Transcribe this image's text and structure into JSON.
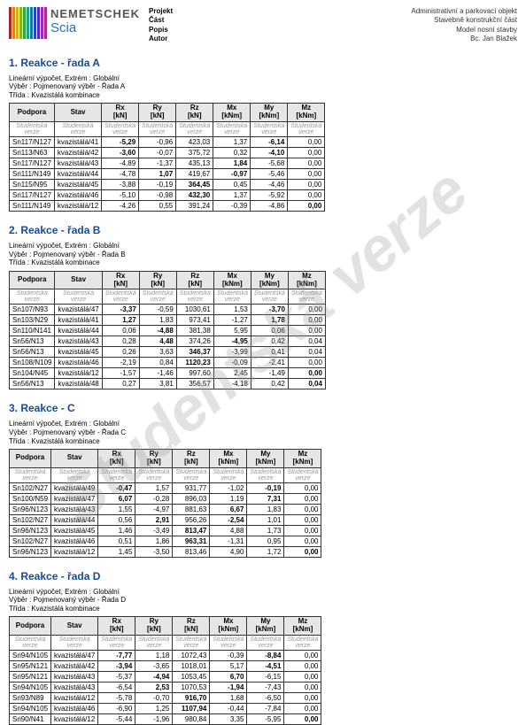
{
  "watermark_text": "Studentská verze",
  "logo": {
    "brand_top": "NEMETSCHEK",
    "brand_bottom": "Scia",
    "bar_colors": [
      "#a52828",
      "#d48817",
      "#c9b41a",
      "#8bb31a",
      "#3aa23a",
      "#1aa28b",
      "#1a73b3",
      "#2a4ab3",
      "#5a2ab3",
      "#a22ab3",
      "#b32a7a"
    ]
  },
  "meta_left": {
    "l1": "Projekt",
    "l2": "Část",
    "l3": "Popis",
    "l4": "Autor"
  },
  "meta_right": {
    "l1": "Administrativní a parkovací objekt",
    "l2": "Stavebně konstrukční část",
    "l3": "Model nosní stavby",
    "l4": "Bc. Jan Blažek"
  },
  "sections": [
    {
      "title": "1. Reakce - řada A",
      "sub1": "Lineární výpočet, Extrém : Globální",
      "sub2": "Výběr : Pojmenovaný výběr - Řada A",
      "sub3": "Třída : Kvazistálá kombinace",
      "headers": [
        "Podpora",
        "Stav",
        "Rx\n[kN]",
        "Ry\n[kN]",
        "Rz\n[kN]",
        "Mx\n[kNm]",
        "My\n[kNm]",
        "Mz\n[kNm]"
      ],
      "rows": [
        [
          "Sn117/N127",
          "kvazistálá/41",
          "b:-5,29",
          "-0,96",
          "423,03",
          "1,37",
          "b:-6,14",
          "0,00"
        ],
        [
          "Sn113/N63",
          "kvazistálá/42",
          "b:-3,60",
          "-0,07",
          "375,72",
          "0,32",
          "b:-4,10",
          "0,00"
        ],
        [
          "Sn117/N127",
          "kvazistálá/43",
          "-4,89",
          "-1,37",
          "435,13",
          "b:1,84",
          "-5,68",
          "0,00"
        ],
        [
          "Sn111/N149",
          "kvazistálá/44",
          "-4,78",
          "b:1,07",
          "419,67",
          "b:-0,97",
          "-5,46",
          "0,00"
        ],
        [
          "Sn115/N95",
          "kvazistálá/45",
          "-3,88",
          "-0,19",
          "b:364,45",
          "0,45",
          "-4,46",
          "0,00"
        ],
        [
          "Sn117/N127",
          "kvazistálá/46",
          "-5,10",
          "-0,98",
          "b:432,30",
          "1,37",
          "-5,92",
          "0,00"
        ],
        [
          "Sn111/N149",
          "kvazistálá/12",
          "-4,26",
          "0,55",
          "391,24",
          "-0,39",
          "-4,86",
          "b:0,00"
        ]
      ]
    },
    {
      "title": "2. Reakce - řada B",
      "sub1": "Lineární výpočet, Extrém : Globální",
      "sub2": "Výběr : Pojmenovaný výběr - Řada B",
      "sub3": "Třída : Kvazistálá kombinace",
      "headers": [
        "Podpora",
        "Stav",
        "Rx\n[kN]",
        "Ry\n[kN]",
        "Rz\n[kN]",
        "Mx\n[kNm]",
        "My\n[kNm]",
        "Mz\n[kNm]"
      ],
      "rows": [
        [
          "Sn107/N93",
          "kvazistálá/47",
          "b:-3,37",
          "-0,59",
          "1030,61",
          "1,53",
          "b:-3,70",
          "0,00"
        ],
        [
          "Sn103/N29",
          "kvazistálá/41",
          "b:1,27",
          "1,83",
          "973,41",
          "-1,27",
          "b:1,78",
          "0,00"
        ],
        [
          "Sn110/N141",
          "kvazistálá/44",
          "0,06",
          "b:-4,88",
          "381,38",
          "5,95",
          "0,06",
          "0,00"
        ],
        [
          "Sn56/N13",
          "kvazistálá/43",
          "0,28",
          "b:4,48",
          "374,26",
          "b:-4,95",
          "0,42",
          "0,04"
        ],
        [
          "Sn56/N13",
          "kvazistálá/45",
          "0,26",
          "3,63",
          "b:346,37",
          "-3,99",
          "0,41",
          "0,04"
        ],
        [
          "Sn108/N109",
          "kvazistálá/46",
          "-2,19",
          "0,84",
          "b:1120,23",
          "-0,09",
          "-2,41",
          "0,00"
        ],
        [
          "Sn104/N45",
          "kvazistálá/12",
          "-1,57",
          "-1,46",
          "997,60",
          "2,45",
          "-1,49",
          "b:0,00"
        ],
        [
          "Sn56/N13",
          "kvazistálá/48",
          "0,27",
          "3,81",
          "356,57",
          "-4,18",
          "0,42",
          "b:0,04"
        ]
      ]
    },
    {
      "title": "3. Reakce - C",
      "sub1": "Lineární výpočet, Extrém : Globální",
      "sub2": "Výběr : Pojmenovaný výběr - Řada C",
      "sub3": "Třída : Kvazistálá kombinace",
      "headers": [
        "Podpora",
        "Stav",
        "Rx\n[kN]",
        "Ry\n[kN]",
        "Rz\n[kN]",
        "Mx\n[kNm]",
        "My\n[kNm]",
        "Mz\n[kNm]"
      ],
      "rows": [
        [
          "Sn102/N27",
          "kvazistálá/49",
          "b:-0,47",
          "1,57",
          "931,77",
          "-1,02",
          "b:-0,19",
          "0,00"
        ],
        [
          "Sn100/N59",
          "kvazistálá/47",
          "b:6,07",
          "-0,28",
          "896,03",
          "1,19",
          "b:7,31",
          "0,00"
        ],
        [
          "Sn96/N123",
          "kvazistálá/43",
          "1,55",
          "-4,97",
          "881,63",
          "b:6,67",
          "1,83",
          "0,00"
        ],
        [
          "Sn102/N27",
          "kvazistálá/44",
          "0,56",
          "b:2,91",
          "956,26",
          "b:-2,54",
          "1,01",
          "0,00"
        ],
        [
          "Sn96/N123",
          "kvazistálá/45",
          "1,46",
          "-3,49",
          "b:813,47",
          "4,88",
          "1,73",
          "0,00"
        ],
        [
          "Sn102/N27",
          "kvazistálá/46",
          "0,51",
          "1,86",
          "b:963,31",
          "-1,31",
          "0,95",
          "0,00"
        ],
        [
          "Sn96/N123",
          "kvazistálá/12",
          "1,45",
          "-3,50",
          "813,46",
          "4,90",
          "1,72",
          "b:0,00"
        ]
      ]
    },
    {
      "title": "4. Reakce - řada D",
      "sub1": "Lineární výpočet, Extrém : Globální",
      "sub2": "Výběr : Pojmenovaný výběr - Řada D",
      "sub3": "Třída : Kvazistálá kombinace",
      "headers": [
        "Podpora",
        "Stav",
        "Rx\n[kN]",
        "Ry\n[kN]",
        "Rz\n[kN]",
        "Mx\n[kNm]",
        "My\n[kNm]",
        "Mz\n[kNm]"
      ],
      "rows": [
        [
          "Sn94/N105",
          "kvazistálá/47",
          "b:-7,77",
          "1,18",
          "1072,43",
          "-0,39",
          "b:-8,84",
          "0,00"
        ],
        [
          "Sn95/N121",
          "kvazistálá/42",
          "b:-3,94",
          "-3,65",
          "1018,01",
          "5,17",
          "b:-4,51",
          "0,00"
        ],
        [
          "Sn95/N121",
          "kvazistálá/43",
          "-5,37",
          "b:-4,94",
          "1053,45",
          "b:6,70",
          "-6,15",
          "0,00"
        ],
        [
          "Sn94/N105",
          "kvazistálá/43",
          "-6,54",
          "b:2,53",
          "1070,53",
          "b:-1,94",
          "-7,43",
          "0,00"
        ],
        [
          "Sn93/N89",
          "kvazistálá/12",
          "-5,78",
          "-0,70",
          "b:916,70",
          "1,68",
          "-6,50",
          "0,00"
        ],
        [
          "Sn94/N105",
          "kvazistálá/46",
          "-6,90",
          "1,25",
          "b:1107,94",
          "-0,44",
          "-7,84",
          "0,00"
        ],
        [
          "Sn90/N41",
          "kvazistálá/12",
          "-5,44",
          "-1,96",
          "980,84",
          "3,35",
          "-5,95",
          "b:0,00"
        ]
      ]
    }
  ],
  "wm_cell": "Studentská verze"
}
